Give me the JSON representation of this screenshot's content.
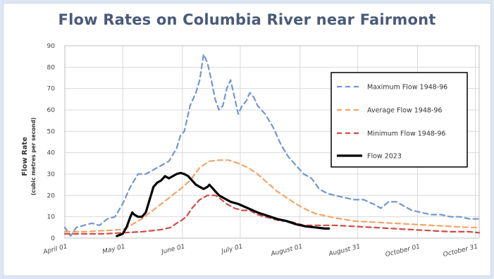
{
  "chart_data": {
    "type": "line",
    "title": "Flow Rates on Columbia River near Fairmont",
    "ylabel": "Flow Rate",
    "ylabel_sub": "(cubic metres per second)",
    "ylim": [
      0,
      90
    ],
    "yticks": [
      0,
      10,
      20,
      30,
      40,
      50,
      60,
      70,
      80,
      90
    ],
    "xlim": [
      0,
      215
    ],
    "xticks": [
      {
        "label": "April 01",
        "day": 0
      },
      {
        "label": "May 01",
        "day": 30
      },
      {
        "label": "June 01",
        "day": 61
      },
      {
        "label": "July 01",
        "day": 91
      },
      {
        "label": "August 01",
        "day": 122
      },
      {
        "label": "August 31",
        "day": 152
      },
      {
        "label": "October 01",
        "day": 183
      },
      {
        "label": "October 31",
        "day": 213
      }
    ],
    "grid": true,
    "legend_position": "right",
    "series": [
      {
        "name": "Maximum Flow 1948-96",
        "color": "#7396d2",
        "style": "dashed",
        "points": [
          [
            0,
            5
          ],
          [
            3,
            1
          ],
          [
            6,
            5
          ],
          [
            10,
            6
          ],
          [
            14,
            7
          ],
          [
            18,
            6
          ],
          [
            22,
            9
          ],
          [
            26,
            10
          ],
          [
            30,
            16
          ],
          [
            34,
            24
          ],
          [
            38,
            30
          ],
          [
            42,
            30
          ],
          [
            46,
            32
          ],
          [
            50,
            34
          ],
          [
            54,
            36
          ],
          [
            58,
            42
          ],
          [
            60,
            48
          ],
          [
            62,
            50
          ],
          [
            65,
            62
          ],
          [
            68,
            68
          ],
          [
            70,
            74
          ],
          [
            72,
            86
          ],
          [
            74,
            82
          ],
          [
            76,
            74
          ],
          [
            78,
            65
          ],
          [
            80,
            60
          ],
          [
            82,
            62
          ],
          [
            84,
            70
          ],
          [
            86,
            74
          ],
          [
            88,
            66
          ],
          [
            90,
            58
          ],
          [
            92,
            62
          ],
          [
            94,
            64
          ],
          [
            96,
            68
          ],
          [
            98,
            66
          ],
          [
            100,
            62
          ],
          [
            104,
            58
          ],
          [
            108,
            52
          ],
          [
            112,
            44
          ],
          [
            116,
            38
          ],
          [
            120,
            34
          ],
          [
            124,
            30
          ],
          [
            128,
            28
          ],
          [
            132,
            23
          ],
          [
            136,
            21
          ],
          [
            140,
            20
          ],
          [
            145,
            19
          ],
          [
            150,
            18
          ],
          [
            155,
            18
          ],
          [
            160,
            16
          ],
          [
            164,
            14
          ],
          [
            168,
            17
          ],
          [
            172,
            17
          ],
          [
            176,
            15
          ],
          [
            180,
            13
          ],
          [
            185,
            12
          ],
          [
            190,
            11
          ],
          [
            195,
            11
          ],
          [
            200,
            10
          ],
          [
            205,
            10
          ],
          [
            210,
            9
          ],
          [
            215,
            9
          ]
        ]
      },
      {
        "name": "Average Flow 1948-96",
        "color": "#f2a46a",
        "style": "dashed",
        "points": [
          [
            0,
            3
          ],
          [
            10,
            3
          ],
          [
            20,
            3.5
          ],
          [
            30,
            4
          ],
          [
            40,
            9
          ],
          [
            50,
            16
          ],
          [
            60,
            23
          ],
          [
            65,
            27
          ],
          [
            70,
            33
          ],
          [
            75,
            36
          ],
          [
            80,
            36.5
          ],
          [
            85,
            36.5
          ],
          [
            90,
            35
          ],
          [
            95,
            33
          ],
          [
            100,
            30
          ],
          [
            105,
            26
          ],
          [
            110,
            22
          ],
          [
            115,
            19
          ],
          [
            120,
            16
          ],
          [
            125,
            13.5
          ],
          [
            130,
            11.5
          ],
          [
            140,
            9.5
          ],
          [
            150,
            8
          ],
          [
            160,
            7.5
          ],
          [
            170,
            7
          ],
          [
            180,
            6.5
          ],
          [
            190,
            6
          ],
          [
            200,
            5.5
          ],
          [
            210,
            5
          ],
          [
            215,
            5
          ]
        ]
      },
      {
        "name": "Minimum Flow 1948-96",
        "color": "#cf4b45",
        "style": "dashed",
        "points": [
          [
            0,
            2
          ],
          [
            10,
            2
          ],
          [
            20,
            2
          ],
          [
            30,
            2.5
          ],
          [
            40,
            3
          ],
          [
            50,
            4
          ],
          [
            55,
            5
          ],
          [
            58,
            7
          ],
          [
            60,
            8
          ],
          [
            63,
            10
          ],
          [
            66,
            14
          ],
          [
            70,
            18
          ],
          [
            74,
            20
          ],
          [
            78,
            20
          ],
          [
            80,
            19
          ],
          [
            84,
            16
          ],
          [
            88,
            14
          ],
          [
            92,
            13
          ],
          [
            96,
            13
          ],
          [
            100,
            11
          ],
          [
            104,
            10
          ],
          [
            108,
            9
          ],
          [
            112,
            8
          ],
          [
            116,
            8
          ],
          [
            120,
            7
          ],
          [
            124,
            6
          ],
          [
            130,
            6
          ],
          [
            140,
            6
          ],
          [
            150,
            5.5
          ],
          [
            160,
            5
          ],
          [
            170,
            4.5
          ],
          [
            180,
            4
          ],
          [
            190,
            3.5
          ],
          [
            200,
            3
          ],
          [
            210,
            3
          ],
          [
            215,
            2.5
          ]
        ]
      },
      {
        "name": "Flow 2023",
        "color": "#000000",
        "style": "solid",
        "points": [
          [
            27,
            1
          ],
          [
            30,
            2
          ],
          [
            32,
            5
          ],
          [
            34,
            10
          ],
          [
            35,
            12
          ],
          [
            36,
            11
          ],
          [
            38,
            10
          ],
          [
            40,
            10
          ],
          [
            42,
            12
          ],
          [
            44,
            18
          ],
          [
            46,
            24
          ],
          [
            48,
            26
          ],
          [
            50,
            27
          ],
          [
            52,
            29
          ],
          [
            54,
            28
          ],
          [
            56,
            29
          ],
          [
            58,
            30
          ],
          [
            60,
            30.5
          ],
          [
            62,
            30
          ],
          [
            64,
            29
          ],
          [
            66,
            27
          ],
          [
            68,
            25
          ],
          [
            70,
            24
          ],
          [
            72,
            23
          ],
          [
            74,
            24
          ],
          [
            75,
            25
          ],
          [
            76,
            24
          ],
          [
            78,
            22
          ],
          [
            80,
            20
          ],
          [
            82,
            19
          ],
          [
            84,
            18
          ],
          [
            86,
            17
          ],
          [
            90,
            16
          ],
          [
            95,
            14
          ],
          [
            100,
            12
          ],
          [
            105,
            10.5
          ],
          [
            110,
            9
          ],
          [
            115,
            8
          ],
          [
            120,
            6.5
          ],
          [
            125,
            5.5
          ],
          [
            130,
            5
          ],
          [
            135,
            4.5
          ],
          [
            137,
            4.5
          ]
        ]
      }
    ]
  }
}
